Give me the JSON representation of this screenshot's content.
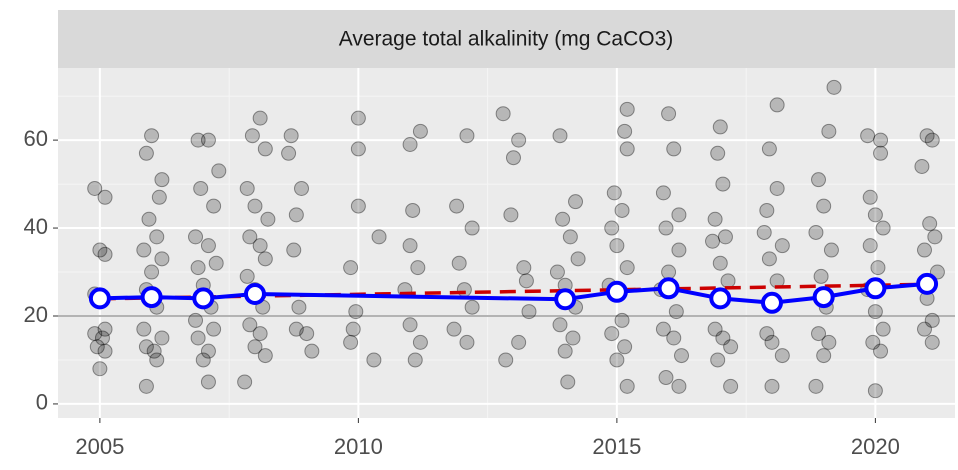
{
  "chart_data": {
    "type": "scatter",
    "title": "Average total alkalinity (mg CaCO3)",
    "xlim": [
      2004.19,
      2021.54
    ],
    "ylim": [
      -3.2,
      76.4
    ],
    "xticks": [
      2005,
      2010,
      2015,
      2020
    ],
    "yticks": [
      0,
      20,
      40,
      60
    ],
    "grid": true,
    "hline": 20,
    "series": [
      {
        "type": "scatter",
        "color": "#000000",
        "x": [
          2004.9,
          2005.1,
          2005.0,
          2005.1,
          2004.95,
          2005.1,
          2004.9,
          2005.05,
          2004.95,
          2005.1,
          2005.0,
          2004.9,
          2006.0,
          2005.9,
          2006.2,
          2006.15,
          2005.95,
          2006.1,
          2005.85,
          2006.2,
          2006.0,
          2005.9,
          2006.1,
          2005.85,
          2006.2,
          2005.9,
          2006.05,
          2006.1,
          2005.9,
          2006.9,
          2007.1,
          2007.3,
          2006.95,
          2007.2,
          2006.85,
          2007.1,
          2007.25,
          2006.9,
          2007.0,
          2007.15,
          2006.85,
          2007.2,
          2006.9,
          2007.1,
          2007.0,
          2007.1,
          2008.1,
          2007.95,
          2008.2,
          2007.85,
          2008.0,
          2008.25,
          2007.9,
          2008.1,
          2008.2,
          2007.85,
          2008.0,
          2008.15,
          2007.9,
          2008.1,
          2008.0,
          2008.2,
          2007.8,
          2008.7,
          2008.65,
          2008.9,
          2008.8,
          2008.75,
          2008.85,
          2008.8,
          2009.0,
          2009.1,
          2010.0,
          2010.0,
          2010.0,
          2010.4,
          2009.85,
          2009.95,
          2009.9,
          2009.85,
          2010.3,
          2011.2,
          2011.0,
          2011.05,
          2011.0,
          2011.15,
          2010.9,
          2011.0,
          2011.2,
          2011.1,
          2012.1,
          2011.9,
          2012.2,
          2011.95,
          2012.05,
          2012.2,
          2011.85,
          2012.1,
          2012.8,
          2013.1,
          2013.0,
          2012.95,
          2013.2,
          2013.25,
          2013.3,
          2013.1,
          2012.85,
          2013.9,
          2014.2,
          2013.95,
          2014.1,
          2014.25,
          2013.85,
          2014.0,
          2014.2,
          2013.9,
          2014.15,
          2014.0,
          2014.05,
          2015.2,
          2015.15,
          2015.2,
          2014.95,
          2015.1,
          2014.9,
          2015.0,
          2015.2,
          2014.85,
          2015.1,
          2014.9,
          2015.15,
          2015.0,
          2015.2,
          2016.0,
          2016.1,
          2015.9,
          2016.2,
          2015.95,
          2016.2,
          2016.0,
          2015.85,
          2016.15,
          2015.9,
          2016.1,
          2016.25,
          2015.95,
          2016.2,
          2017.0,
          2016.95,
          2017.05,
          2016.9,
          2017.1,
          2016.85,
          2017.0,
          2017.15,
          2016.9,
          2017.05,
          2017.2,
          2016.95,
          2017.2,
          2018.1,
          2017.95,
          2018.1,
          2017.9,
          2017.85,
          2018.2,
          2017.95,
          2018.1,
          2017.9,
          2018.0,
          2018.2,
          2018.0,
          2019.2,
          2019.1,
          2018.9,
          2019.0,
          2018.85,
          2019.15,
          2018.95,
          2019.05,
          2018.9,
          2019.1,
          2019.0,
          2018.85,
          2019.85,
          2020.1,
          2020.1,
          2019.9,
          2020.0,
          2020.15,
          2019.9,
          2020.05,
          2019.85,
          2020.0,
          2020.15,
          2019.95,
          2020.1,
          2020.0,
          2021.0,
          2021.1,
          2020.9,
          2021.05,
          2021.15,
          2020.95,
          2021.2,
          2021.0,
          2021.1,
          2020.95,
          2021.1
        ],
        "values": [
          49,
          47,
          35,
          34,
          24,
          17,
          16,
          15,
          13,
          12,
          8,
          25,
          61,
          57,
          51,
          47,
          42,
          38,
          35,
          33,
          30,
          26,
          22,
          17,
          15,
          13,
          12,
          10,
          4,
          60,
          60,
          53,
          49,
          45,
          38,
          36,
          32,
          31,
          27,
          22,
          19,
          17,
          15,
          12,
          10,
          5,
          65,
          61,
          58,
          49,
          45,
          42,
          38,
          36,
          33,
          29,
          26,
          22,
          18,
          16,
          13,
          11,
          5,
          61,
          57,
          49,
          43,
          35,
          22,
          17,
          16,
          12,
          65,
          58,
          45,
          38,
          31,
          21,
          17,
          14,
          10,
          62,
          59,
          44,
          36,
          31,
          26,
          18,
          14,
          10,
          61,
          45,
          40,
          32,
          26,
          22,
          17,
          14,
          66,
          60,
          56,
          43,
          31,
          28,
          21,
          14,
          10,
          61,
          46,
          42,
          38,
          33,
          30,
          27,
          22,
          18,
          15,
          12,
          5,
          67,
          62,
          58,
          48,
          44,
          40,
          36,
          31,
          27,
          19,
          16,
          13,
          10,
          4,
          66,
          58,
          48,
          43,
          40,
          35,
          30,
          26,
          21,
          17,
          15,
          11,
          6,
          4,
          63,
          57,
          50,
          42,
          38,
          37,
          32,
          28,
          17,
          15,
          13,
          10,
          4,
          68,
          58,
          49,
          44,
          39,
          36,
          33,
          28,
          16,
          14,
          11,
          4,
          72,
          62,
          51,
          45,
          39,
          35,
          29,
          22,
          16,
          14,
          11,
          4,
          61,
          60,
          57,
          47,
          43,
          40,
          36,
          31,
          26,
          21,
          17,
          14,
          12,
          3,
          61,
          60,
          54,
          41,
          38,
          35,
          30,
          24,
          19,
          17,
          14
        ]
      },
      {
        "type": "line",
        "color": "#cc0000",
        "dash": true,
        "x": [
          2005,
          2021
        ],
        "values": [
          23.9,
          27.2
        ]
      },
      {
        "type": "line",
        "color": "#0000ff",
        "markers": true,
        "x": [
          2005,
          2006,
          2007,
          2008,
          2014,
          2015,
          2016,
          2017,
          2018,
          2019,
          2020,
          2021
        ],
        "values": [
          24,
          24.3,
          24,
          25,
          23.8,
          25.5,
          26.3,
          24,
          23,
          24.3,
          26.3,
          27.3
        ]
      }
    ]
  }
}
